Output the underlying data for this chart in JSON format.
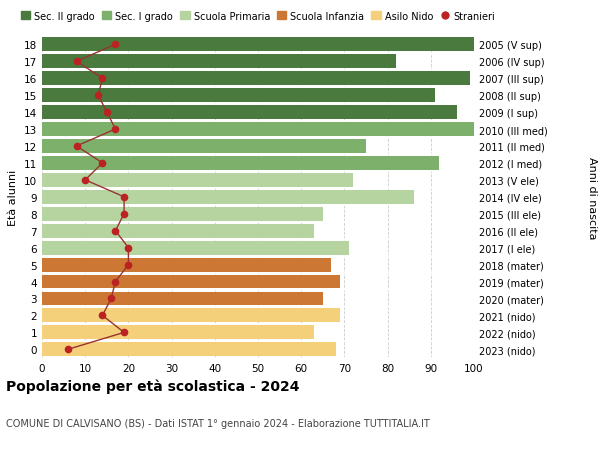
{
  "ages": [
    18,
    17,
    16,
    15,
    14,
    13,
    12,
    11,
    10,
    9,
    8,
    7,
    6,
    5,
    4,
    3,
    2,
    1,
    0
  ],
  "anni_nascita": [
    "2005 (V sup)",
    "2006 (IV sup)",
    "2007 (III sup)",
    "2008 (II sup)",
    "2009 (I sup)",
    "2010 (III med)",
    "2011 (II med)",
    "2012 (I med)",
    "2013 (V ele)",
    "2014 (IV ele)",
    "2015 (III ele)",
    "2016 (II ele)",
    "2017 (I ele)",
    "2018 (mater)",
    "2019 (mater)",
    "2020 (mater)",
    "2021 (nido)",
    "2022 (nido)",
    "2023 (nido)"
  ],
  "bar_values": [
    100,
    82,
    99,
    91,
    96,
    100,
    75,
    92,
    72,
    86,
    65,
    63,
    71,
    67,
    69,
    65,
    69,
    63,
    68
  ],
  "stranieri": [
    17,
    8,
    14,
    13,
    15,
    17,
    8,
    14,
    10,
    19,
    19,
    17,
    20,
    20,
    17,
    16,
    14,
    19,
    6
  ],
  "categories": {
    "sec2": [
      18,
      17,
      16,
      15,
      14
    ],
    "sec1": [
      13,
      12,
      11
    ],
    "primaria": [
      10,
      9,
      8,
      7,
      6
    ],
    "infanzia": [
      5,
      4,
      3
    ],
    "nido": [
      2,
      1,
      0
    ]
  },
  "colors": {
    "sec2": "#4a7a3d",
    "sec1": "#7db06a",
    "primaria": "#b5d4a0",
    "infanzia": "#cc7733",
    "nido": "#f5d07a"
  },
  "stranieri_color": "#bb2222",
  "stranieri_line_color": "#993333",
  "title": "Popolazione per età scolastica - 2024",
  "subtitle": "COMUNE DI CALVISANO (BS) - Dati ISTAT 1° gennaio 2024 - Elaborazione TUTTITALIA.IT",
  "ylabel_left": "Età alunni",
  "ylabel_right": "Anni di nascita",
  "xlim": [
    0,
    100
  ],
  "legend_labels": [
    "Sec. II grado",
    "Sec. I grado",
    "Scuola Primaria",
    "Scuola Infanzia",
    "Asilo Nido",
    "Stranieri"
  ],
  "grid_color": "#cccccc"
}
